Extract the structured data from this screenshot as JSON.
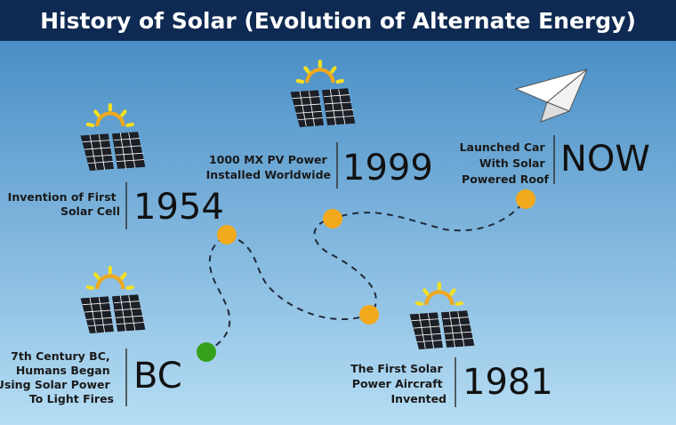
{
  "header": {
    "title": "History of Solar (Evolution of Alternate Energy)"
  },
  "milestones": [
    {
      "label": "BC",
      "description": [
        "7th Century BC,",
        "Humans Began",
        "Using Solar Power",
        "To Light Fires"
      ]
    },
    {
      "label": "1954",
      "description": [
        "Invention of First",
        "Solar Cell"
      ]
    },
    {
      "label": "1999",
      "description": [
        "1000 MX PV Power",
        "Installed Worldwide"
      ]
    },
    {
      "label": "1981",
      "description": [
        "The First Solar",
        "Power Aircraft",
        "Invented"
      ]
    },
    {
      "label": "NOW",
      "description": [
        "Launched Car",
        "With Solar",
        "Powered Roof"
      ]
    }
  ]
}
